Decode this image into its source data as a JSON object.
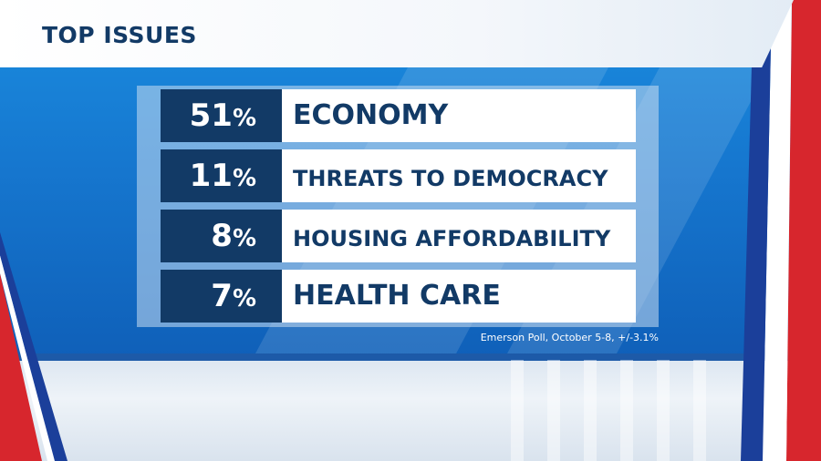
{
  "header": {
    "title": "TOP ISSUES"
  },
  "chart_data": {
    "type": "table",
    "title": "TOP ISSUES",
    "rows": [
      {
        "value": 51,
        "pct_number": "51",
        "pct_symbol": "%",
        "label": "ECONOMY"
      },
      {
        "value": 11,
        "pct_number": "11",
        "pct_symbol": "%",
        "label": "THREATS TO DEMOCRACY"
      },
      {
        "value": 8,
        "pct_number": "8",
        "pct_symbol": "%",
        "label": "HOUSING AFFORDABILITY"
      },
      {
        "value": 7,
        "pct_number": "7",
        "pct_symbol": "%",
        "label": "HEALTH CARE"
      }
    ],
    "source": "Emerson Poll, October 5-8, +/-3.1%"
  },
  "colors": {
    "navy": "#123a66",
    "blue_bg": "#1677cf",
    "red_accent": "#d7262d",
    "white": "#ffffff"
  }
}
